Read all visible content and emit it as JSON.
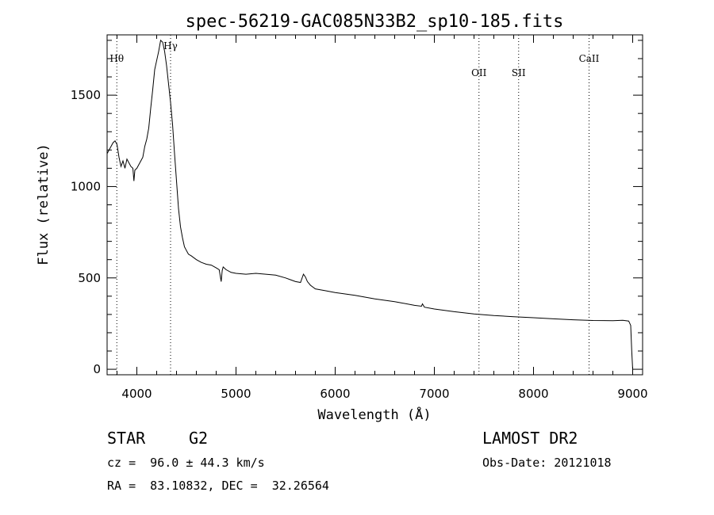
{
  "chart_data": {
    "type": "line",
    "title": "spec-56219-GAC085N33B2_sp10-185.fits",
    "xlabel": "Wavelength (Å)",
    "ylabel": "Flux (relative)",
    "xlim": [
      3700,
      9100
    ],
    "ylim": [
      -30,
      1830
    ],
    "x_ticks": [
      4000,
      5000,
      6000,
      7000,
      8000,
      9000
    ],
    "y_ticks": [
      0,
      500,
      1000,
      1500
    ],
    "grid": false,
    "series": [
      {
        "x": [
          3700,
          3720,
          3740,
          3760,
          3780,
          3800,
          3820,
          3840,
          3860,
          3880,
          3900,
          3920,
          3940,
          3960,
          3970,
          3980,
          4000,
          4020,
          4040,
          4060,
          4080,
          4100,
          4120,
          4140,
          4160,
          4180,
          4200,
          4220,
          4240,
          4260,
          4280,
          4300,
          4320,
          4340,
          4360,
          4380,
          4400,
          4420,
          4440,
          4460,
          4480,
          4500,
          4520,
          4550,
          4600,
          4650,
          4700,
          4750,
          4800,
          4830,
          4850,
          4861,
          4870,
          4900,
          4950,
          5000,
          5100,
          5200,
          5300,
          5400,
          5500,
          5550,
          5600,
          5650,
          5680,
          5700,
          5720,
          5750,
          5800,
          5900,
          6000,
          6200,
          6400,
          6600,
          6800,
          6870,
          6880,
          6900,
          7000,
          7200,
          7400,
          7600,
          7800,
          8000,
          8200,
          8400,
          8600,
          8800,
          8900,
          8960,
          8980,
          8990,
          9000
        ],
        "y": [
          1180,
          1200,
          1220,
          1240,
          1250,
          1230,
          1160,
          1110,
          1140,
          1100,
          1150,
          1130,
          1110,
          1100,
          1030,
          1090,
          1100,
          1120,
          1140,
          1160,
          1220,
          1260,
          1320,
          1430,
          1530,
          1640,
          1690,
          1740,
          1800,
          1790,
          1740,
          1660,
          1560,
          1460,
          1340,
          1180,
          1030,
          880,
          780,
          720,
          670,
          650,
          630,
          620,
          600,
          585,
          575,
          570,
          555,
          545,
          480,
          540,
          560,
          545,
          530,
          525,
          520,
          525,
          520,
          515,
          500,
          490,
          480,
          475,
          520,
          505,
          480,
          460,
          440,
          430,
          420,
          405,
          385,
          370,
          350,
          345,
          358,
          340,
          330,
          315,
          303,
          294,
          288,
          282,
          276,
          271,
          267,
          266,
          268,
          264,
          240,
          100,
          0
        ]
      }
    ],
    "lines": [
      {
        "label": "Hθ",
        "x": 3798
      },
      {
        "label": "Hγ",
        "x": 4340
      },
      {
        "label": "OII",
        "x": 7450
      },
      {
        "label": "SII",
        "x": 7850
      },
      {
        "label": "CaII",
        "x": 8560
      }
    ]
  },
  "info": {
    "object_class": "STAR",
    "subclass": "G2",
    "survey": "LAMOST DR2",
    "redshift": "cz =  96.0 ± 44.3 km/s",
    "obs_date": "Obs-Date: 20121018",
    "coords": "RA =  83.10832, DEC =  32.26564"
  }
}
